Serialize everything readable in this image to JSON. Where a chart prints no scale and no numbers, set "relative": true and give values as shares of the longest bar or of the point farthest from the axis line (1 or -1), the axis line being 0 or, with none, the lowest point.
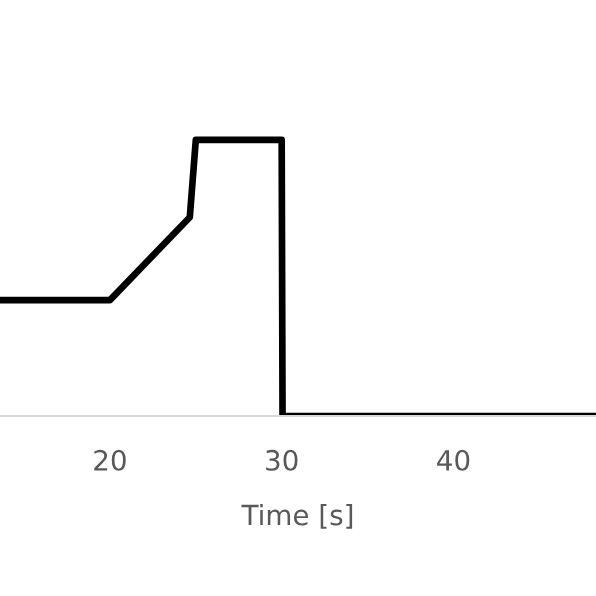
{
  "chart_data": {
    "type": "line",
    "xlabel": "Time [s]",
    "relative": true,
    "series": [
      {
        "color": "#000000",
        "x": [
          13.6,
          20,
          24.65,
          25.0,
          30,
          30.05,
          48.3
        ],
        "values": [
          0.42,
          0.42,
          0.72,
          1,
          1,
          0,
          0
        ]
      }
    ],
    "xlim": [
      13.6,
      48.3
    ],
    "xticks": [
      20,
      30,
      40
    ],
    "grid": false,
    "legend": false,
    "tick_labels": "x"
  }
}
